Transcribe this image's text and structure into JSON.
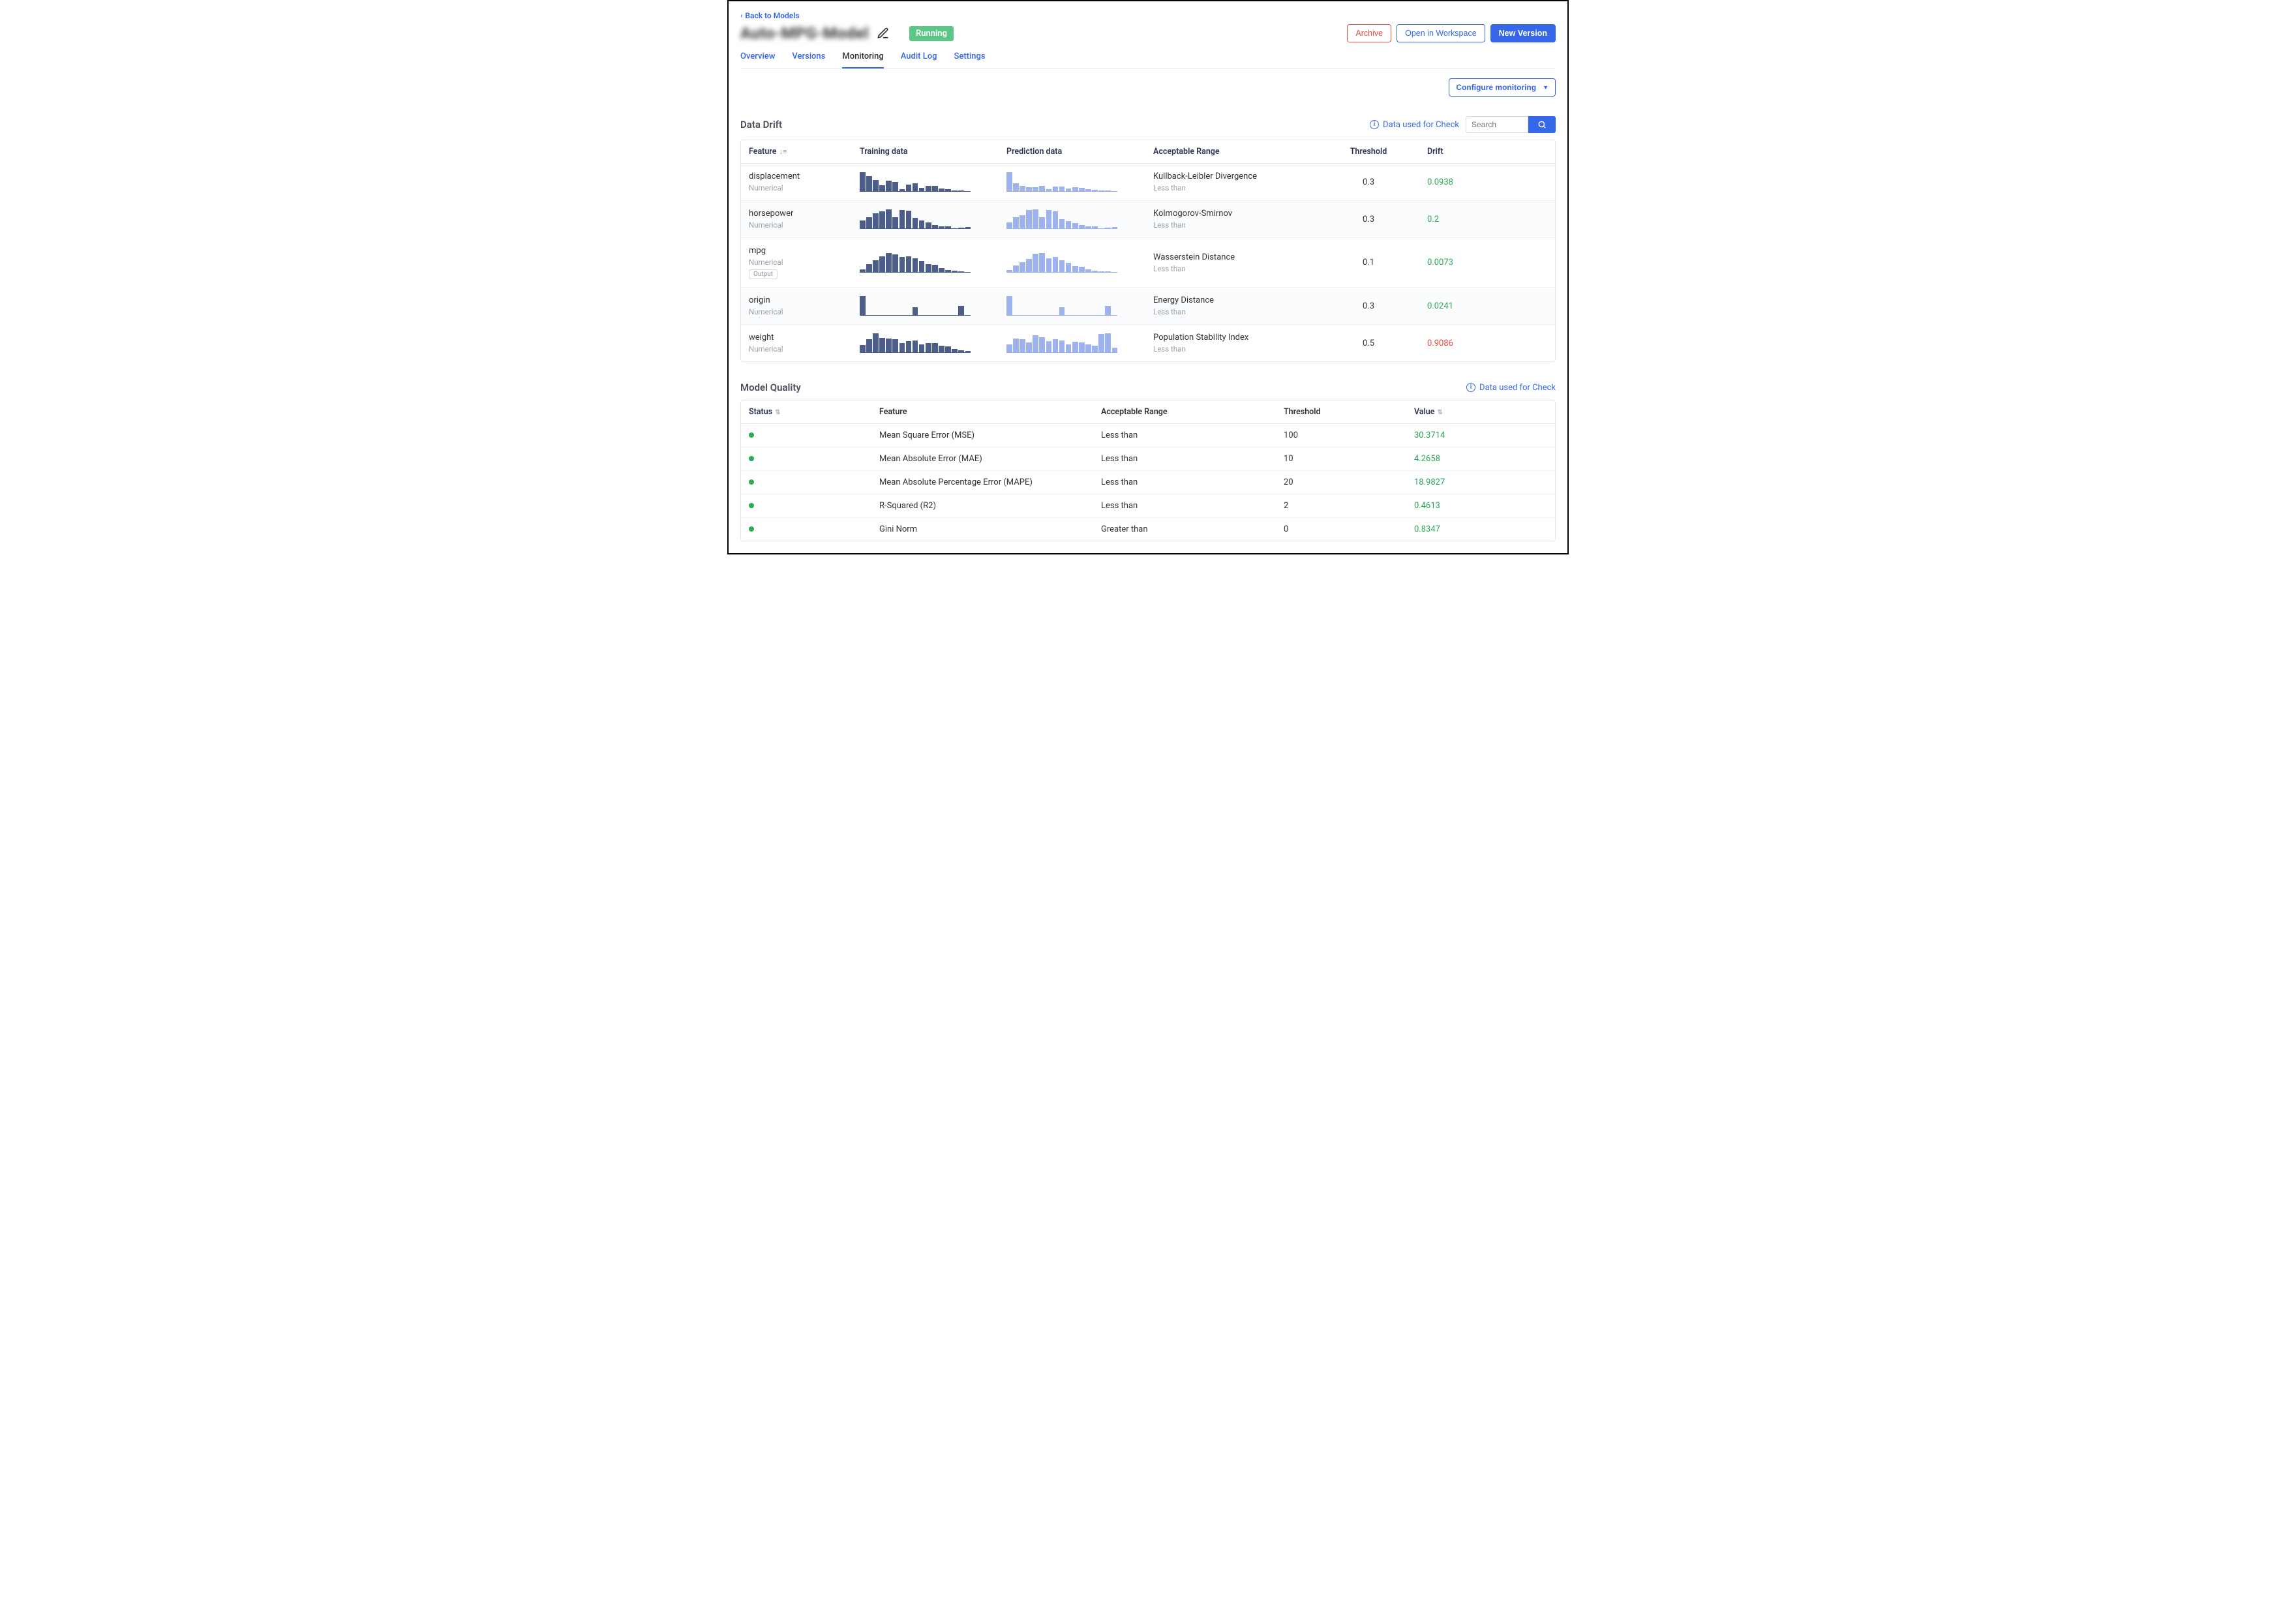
{
  "nav": {
    "back": "Back to Models"
  },
  "header": {
    "title": "Auto-MPG-Model",
    "status_badge": "Running",
    "buttons": {
      "archive": "Archive",
      "workspace": "Open in Workspace",
      "new_version": "New Version"
    }
  },
  "tabs": {
    "overview": "Overview",
    "versions": "Versions",
    "monitoring": "Monitoring",
    "audit_log": "Audit Log",
    "settings": "Settings"
  },
  "configure_btn": "Configure monitoring",
  "drift": {
    "title": "Data Drift",
    "data_used": "Data used for Check",
    "search_placeholder": "Search",
    "columns": {
      "feature": "Feature",
      "training": "Training data",
      "prediction": "Prediction data",
      "range": "Acceptable Range",
      "threshold": "Threshold",
      "drift": "Drift"
    },
    "spark_colors": {
      "train": "#4c5d8a",
      "pred": "#9eb3ee"
    },
    "rows": [
      {
        "name": "displacement",
        "type": "Numerical",
        "output": false,
        "train": [
          100,
          80,
          60,
          30,
          55,
          50,
          12,
          35,
          42,
          18,
          28,
          26,
          14,
          10,
          2,
          4,
          0
        ],
        "pred": [
          100,
          40,
          28,
          20,
          22,
          26,
          12,
          24,
          24,
          15,
          20,
          18,
          10,
          8,
          2,
          3,
          0
        ],
        "range_name": "Kullback-Leibler Divergence",
        "range_sub": "Less than",
        "threshold": "0.3",
        "drift": "0.0938",
        "drift_ok": true
      },
      {
        "name": "horsepower",
        "type": "Numerical",
        "output": false,
        "train": [
          40,
          60,
          78,
          90,
          100,
          60,
          98,
          92,
          55,
          40,
          30,
          18,
          12,
          10,
          0,
          4,
          6
        ],
        "pred": [
          30,
          60,
          70,
          95,
          100,
          60,
          96,
          90,
          50,
          38,
          28,
          16,
          12,
          10,
          0,
          3,
          7
        ],
        "range_name": "Kolmogorov-Smirnov",
        "range_sub": "Less than",
        "threshold": "0.3",
        "drift": "0.2",
        "drift_ok": true
      },
      {
        "name": "mpg",
        "type": "Numerical",
        "output": true,
        "train": [
          12,
          40,
          60,
          80,
          100,
          92,
          78,
          82,
          70,
          58,
          40,
          35,
          18,
          10,
          4,
          2,
          0
        ],
        "pred": [
          10,
          32,
          50,
          68,
          96,
          100,
          70,
          76,
          60,
          48,
          30,
          26,
          12,
          6,
          2,
          1,
          0
        ],
        "range_name": "Wasserstein Distance",
        "range_sub": "Less than",
        "threshold": "0.1",
        "drift": "0.0073",
        "drift_ok": true
      },
      {
        "name": "origin",
        "type": "Numerical",
        "output": false,
        "train": [
          100,
          0,
          0,
          0,
          0,
          0,
          0,
          0,
          40,
          0,
          0,
          0,
          0,
          0,
          0,
          50,
          0
        ],
        "pred": [
          100,
          0,
          0,
          0,
          0,
          0,
          0,
          0,
          40,
          0,
          0,
          0,
          0,
          0,
          0,
          50,
          0
        ],
        "range_name": "Energy Distance",
        "range_sub": "Less than",
        "threshold": "0.3",
        "drift": "0.0241",
        "drift_ok": true
      },
      {
        "name": "weight",
        "type": "Numerical",
        "output": false,
        "train": [
          38,
          70,
          100,
          76,
          74,
          70,
          48,
          58,
          62,
          40,
          50,
          48,
          36,
          30,
          18,
          12,
          6
        ],
        "pred": [
          30,
          50,
          48,
          36,
          62,
          56,
          40,
          48,
          44,
          30,
          38,
          36,
          28,
          24,
          68,
          70,
          18
        ],
        "range_name": "Population Stability Index",
        "range_sub": "Less than",
        "threshold": "0.5",
        "drift": "0.9086",
        "drift_ok": false
      }
    ]
  },
  "quality": {
    "title": "Model Quality",
    "data_used": "Data used for Check",
    "columns": {
      "status": "Status",
      "feature": "Feature",
      "range": "Acceptable Range",
      "threshold": "Threshold",
      "value": "Value"
    },
    "rows": [
      {
        "feature": "Mean Square Error (MSE)",
        "range": "Less than",
        "threshold": "100",
        "value": "30.3714",
        "ok": true
      },
      {
        "feature": "Mean Absolute Error (MAE)",
        "range": "Less than",
        "threshold": "10",
        "value": "4.2658",
        "ok": true
      },
      {
        "feature": "Mean Absolute Percentage Error (MAPE)",
        "range": "Less than",
        "threshold": "20",
        "value": "18.9827",
        "ok": true
      },
      {
        "feature": "R-Squared (R2)",
        "range": "Less than",
        "threshold": "2",
        "value": "0.4613",
        "ok": true
      },
      {
        "feature": "Gini Norm",
        "range": "Greater than",
        "threshold": "0",
        "value": "0.8347",
        "ok": true
      }
    ]
  }
}
